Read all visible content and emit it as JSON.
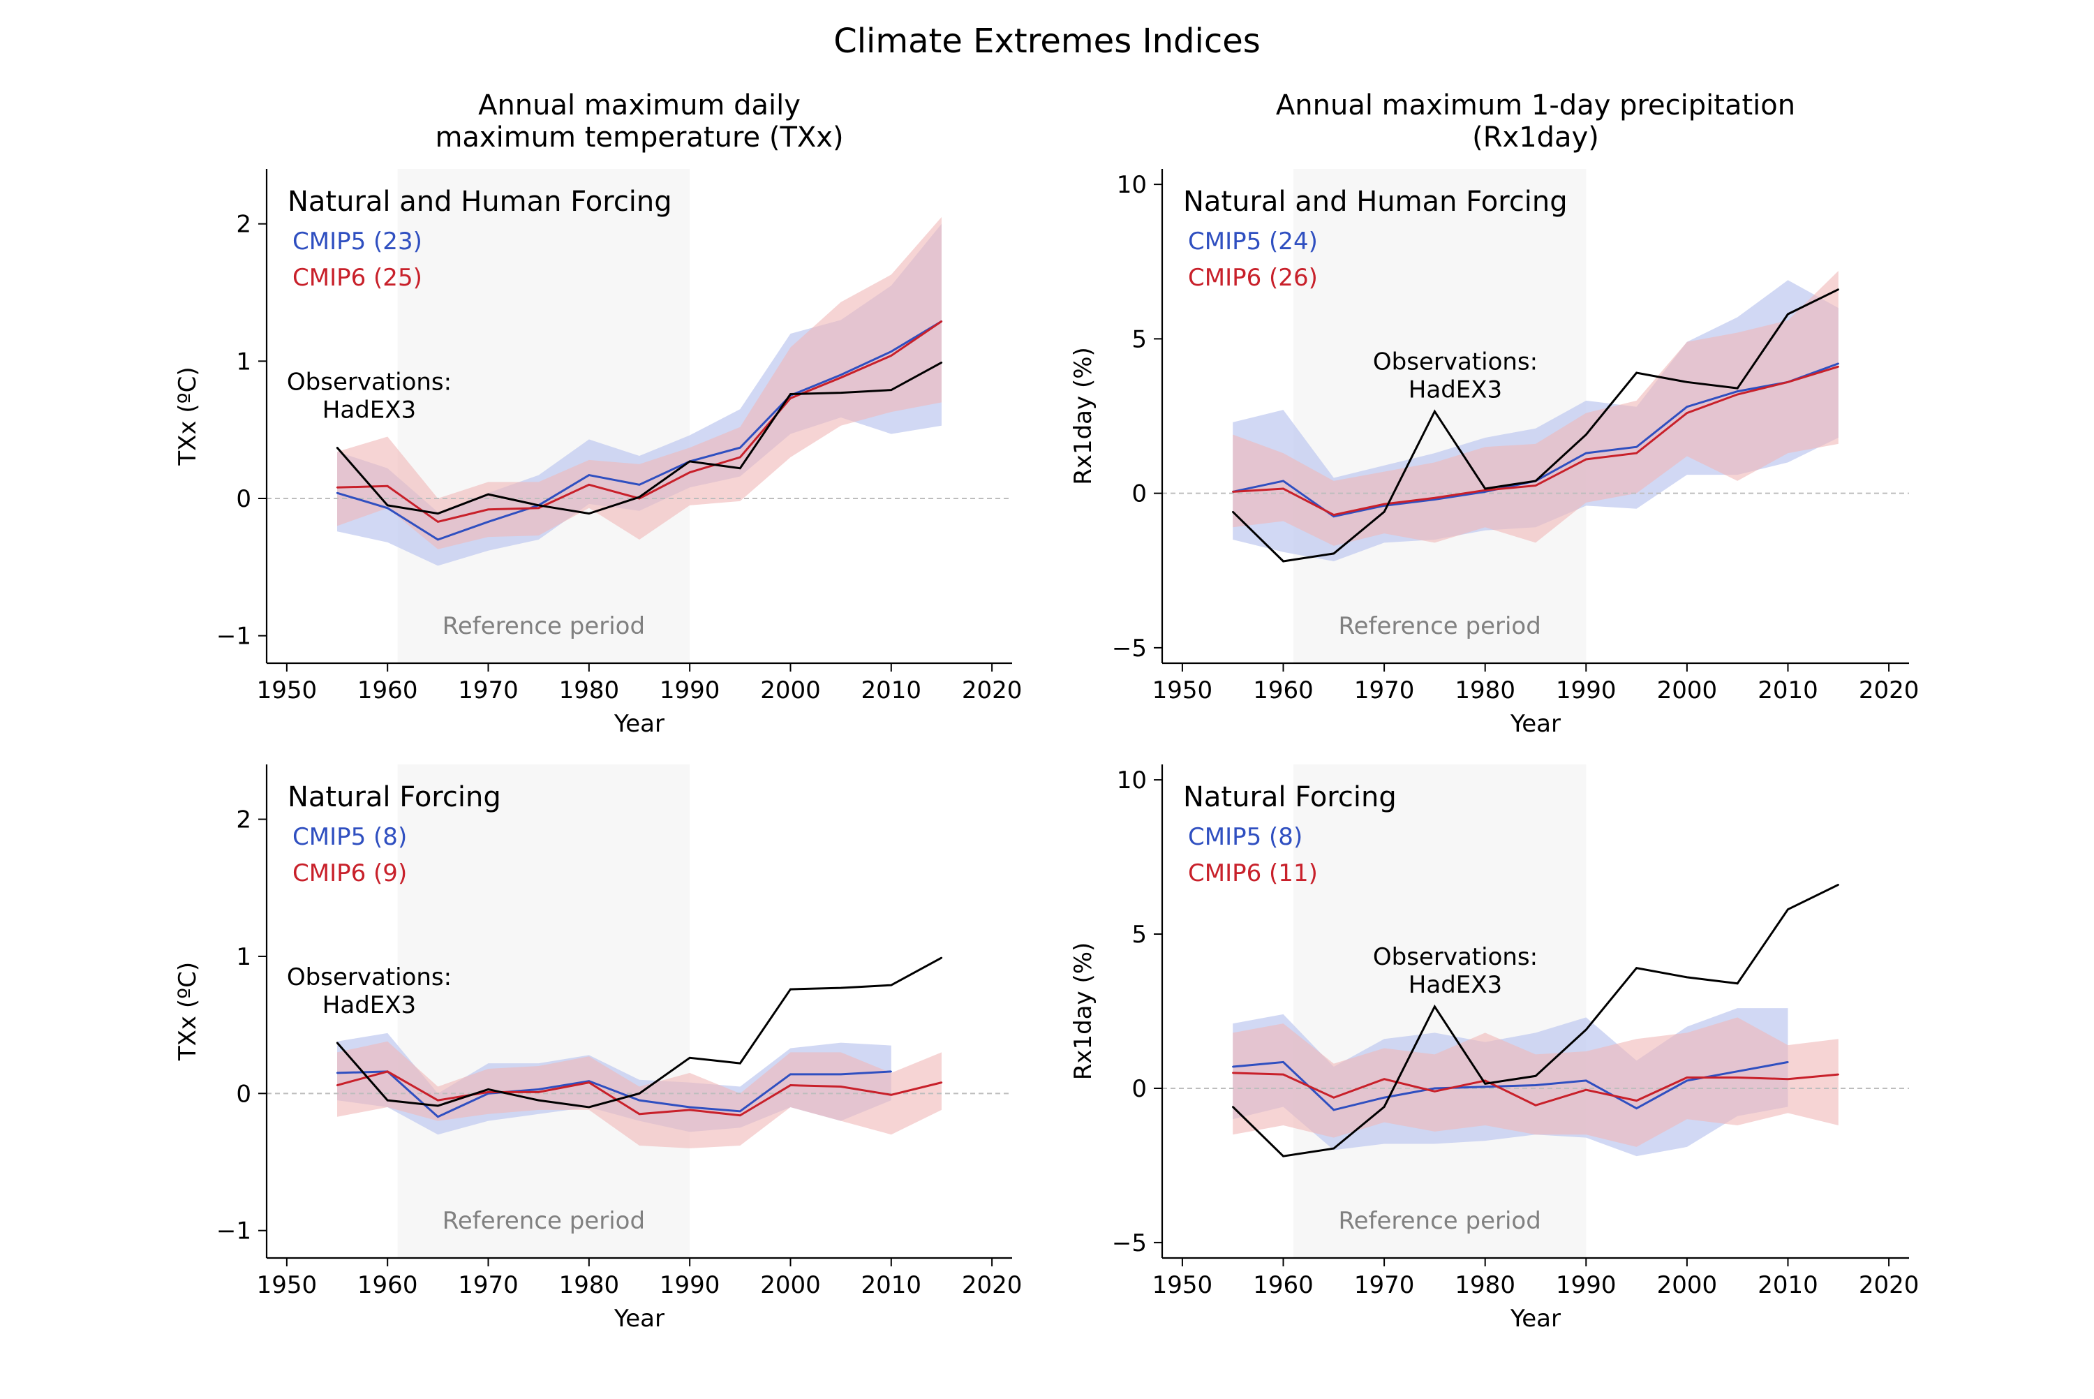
{
  "figure": {
    "suptitle": "Climate Extremes Indices"
  },
  "colors": {
    "cmip5": "#2f4fc0",
    "cmip6": "#c8202a",
    "cmip5_band": "#c2cbf0",
    "cmip6_band": "#f0b8b8",
    "observations": "#000000",
    "reference_shading": "#f7f7f7",
    "reference_text": "#808080",
    "zero_line": "#bdbdbd"
  },
  "chart_data": [
    {
      "type": "line",
      "title": "Annual maximum daily\nmaximum temperature (TXx)",
      "xlabel": "Year",
      "ylabel": "TXx (ºC)",
      "xlim": [
        1948,
        2022
      ],
      "ylim": [
        -1.2,
        2.4
      ],
      "xticks": [
        1950,
        1960,
        1970,
        1980,
        1990,
        2000,
        2010,
        2020
      ],
      "yticks": [
        -1,
        0,
        1,
        2
      ],
      "ytick_labels": [
        "−1",
        "0",
        "1",
        "2"
      ],
      "reference_period": {
        "label": "Reference period",
        "range": [
          1961,
          1990
        ]
      },
      "zero_line": true,
      "panel_label": "Natural and Human Forcing",
      "legend": [
        {
          "text": "CMIP5 (23)",
          "series": "cmip5"
        },
        {
          "text": "CMIP6 (25)",
          "series": "cmip6"
        }
      ],
      "obs_label": [
        "Observations:",
        "HadEX3"
      ],
      "series": [
        {
          "id": "cmip5",
          "name": "CMIP5 (23)",
          "x": [
            1955,
            1960,
            1965,
            1970,
            1975,
            1980,
            1985,
            1990,
            1995,
            2000,
            2005,
            2010,
            2015
          ],
          "values": [
            0.04,
            -0.07,
            -0.3,
            -0.17,
            -0.05,
            0.17,
            0.1,
            0.27,
            0.37,
            0.75,
            0.9,
            1.07,
            1.29
          ],
          "lower": [
            -0.24,
            -0.32,
            -0.49,
            -0.38,
            -0.3,
            -0.04,
            -0.09,
            0.08,
            0.16,
            0.47,
            0.59,
            0.47,
            0.53
          ],
          "upper": [
            0.34,
            0.22,
            -0.1,
            0.04,
            0.17,
            0.43,
            0.31,
            0.46,
            0.65,
            1.2,
            1.3,
            1.55,
            2.0
          ]
        },
        {
          "id": "cmip6",
          "name": "CMIP6 (25)",
          "x": [
            1955,
            1960,
            1965,
            1970,
            1975,
            1980,
            1985,
            1990,
            1995,
            2000,
            2005,
            2010,
            2015
          ],
          "values": [
            0.08,
            0.09,
            -0.17,
            -0.08,
            -0.07,
            0.1,
            0.0,
            0.19,
            0.3,
            0.73,
            0.88,
            1.04,
            1.29
          ],
          "lower": [
            -0.2,
            -0.07,
            -0.37,
            -0.28,
            -0.27,
            -0.07,
            -0.3,
            -0.05,
            -0.02,
            0.3,
            0.53,
            0.63,
            0.7
          ],
          "upper": [
            0.34,
            0.45,
            0.0,
            0.12,
            0.12,
            0.28,
            0.25,
            0.37,
            0.52,
            1.1,
            1.43,
            1.63,
            2.05
          ]
        },
        {
          "id": "obs",
          "name": "",
          "x": [
            1955,
            1960,
            1965,
            1970,
            1975,
            1980,
            1985,
            1990,
            1995,
            2000,
            2005,
            2010,
            2015
          ],
          "values": [
            0.37,
            -0.05,
            -0.11,
            0.03,
            -0.05,
            -0.11,
            0.01,
            0.27,
            0.22,
            0.76,
            0.77,
            0.79,
            0.99
          ]
        }
      ]
    },
    {
      "type": "line",
      "title": "Annual maximum 1-day precipitation\n(Rx1day)",
      "xlabel": "Year",
      "ylabel": "Rx1day (%)",
      "xlim": [
        1948,
        2022
      ],
      "ylim": [
        -5.5,
        10.5
      ],
      "xticks": [
        1950,
        1960,
        1970,
        1980,
        1990,
        2000,
        2010,
        2020
      ],
      "yticks": [
        -5,
        0,
        5,
        10
      ],
      "ytick_labels": [
        "−5",
        "0",
        "5",
        "10"
      ],
      "reference_period": {
        "label": "Reference period",
        "range": [
          1961,
          1990
        ]
      },
      "zero_line": true,
      "panel_label": "Natural and Human Forcing",
      "legend": [
        {
          "text": "CMIP5 (24)",
          "series": "cmip5"
        },
        {
          "text": "CMIP6 (26)",
          "series": "cmip6"
        }
      ],
      "obs_label": [
        "Observations:",
        "HadEX3"
      ],
      "series": [
        {
          "id": "cmip5",
          "name": "CMIP5 (24)",
          "x": [
            1955,
            1960,
            1965,
            1970,
            1975,
            1980,
            1985,
            1990,
            1995,
            2000,
            2005,
            2010,
            2015
          ],
          "values": [
            0.05,
            0.4,
            -0.75,
            -0.4,
            -0.2,
            0.05,
            0.4,
            1.3,
            1.5,
            2.8,
            3.3,
            3.6,
            4.2
          ],
          "lower": [
            -1.5,
            -1.9,
            -2.2,
            -1.6,
            -1.5,
            -1.2,
            -1.1,
            -0.4,
            -0.5,
            0.6,
            0.6,
            1.0,
            1.8
          ],
          "upper": [
            2.3,
            2.7,
            0.5,
            0.9,
            1.3,
            1.8,
            2.1,
            3.0,
            2.8,
            4.9,
            5.7,
            6.9,
            6.0
          ]
        },
        {
          "id": "cmip6",
          "name": "CMIP6 (26)",
          "x": [
            1955,
            1960,
            1965,
            1970,
            1975,
            1980,
            1985,
            1990,
            1995,
            2000,
            2005,
            2010,
            2015
          ],
          "values": [
            0.05,
            0.15,
            -0.7,
            -0.35,
            -0.15,
            0.1,
            0.25,
            1.1,
            1.3,
            2.6,
            3.2,
            3.6,
            4.1
          ],
          "lower": [
            -1.1,
            -0.9,
            -1.7,
            -1.3,
            -1.6,
            -1.1,
            -1.6,
            -0.3,
            0.0,
            1.2,
            0.4,
            1.3,
            1.6
          ],
          "upper": [
            1.9,
            1.3,
            0.4,
            0.7,
            1.0,
            1.5,
            1.6,
            2.6,
            3.0,
            4.9,
            5.2,
            5.6,
            7.2
          ]
        },
        {
          "id": "obs",
          "name": "",
          "x": [
            1955,
            1960,
            1965,
            1970,
            1975,
            1980,
            1985,
            1990,
            1995,
            2000,
            2005,
            2010,
            2015
          ],
          "values": [
            -0.6,
            -2.2,
            -1.95,
            -0.6,
            2.65,
            0.15,
            0.4,
            1.9,
            3.9,
            3.6,
            3.4,
            5.8,
            6.6
          ]
        }
      ]
    },
    {
      "type": "line",
      "title": "",
      "xlabel": "Year",
      "ylabel": "TXx (ºC)",
      "xlim": [
        1948,
        2022
      ],
      "ylim": [
        -1.2,
        2.4
      ],
      "xticks": [
        1950,
        1960,
        1970,
        1980,
        1990,
        2000,
        2010,
        2020
      ],
      "yticks": [
        -1,
        0,
        1,
        2
      ],
      "ytick_labels": [
        "−1",
        "0",
        "1",
        "2"
      ],
      "reference_period": {
        "label": "Reference period",
        "range": [
          1961,
          1990
        ]
      },
      "zero_line": true,
      "panel_label": "Natural Forcing",
      "legend": [
        {
          "text": "CMIP5 (8)",
          "series": "cmip5"
        },
        {
          "text": "CMIP6 (9)",
          "series": "cmip6"
        }
      ],
      "obs_label": [
        "Observations:",
        "HadEX3"
      ],
      "series": [
        {
          "id": "cmip5",
          "name": "CMIP5 (8)",
          "x": [
            1955,
            1960,
            1965,
            1970,
            1975,
            1980,
            1985,
            1990,
            1995,
            2000,
            2005,
            2010
          ],
          "values": [
            0.15,
            0.16,
            -0.17,
            0.0,
            0.03,
            0.09,
            -0.05,
            -0.1,
            -0.13,
            0.14,
            0.14,
            0.16
          ],
          "lower": [
            -0.05,
            -0.1,
            -0.3,
            -0.2,
            -0.15,
            -0.1,
            -0.2,
            -0.28,
            -0.25,
            -0.1,
            -0.2,
            -0.05
          ],
          "upper": [
            0.38,
            0.44,
            0.0,
            0.22,
            0.22,
            0.28,
            0.1,
            0.08,
            0.05,
            0.33,
            0.37,
            0.35
          ]
        },
        {
          "id": "cmip6",
          "name": "CMIP6 (9)",
          "x": [
            1955,
            1960,
            1965,
            1970,
            1975,
            1980,
            1985,
            1990,
            1995,
            2000,
            2005,
            2010,
            2015
          ],
          "values": [
            0.06,
            0.16,
            -0.05,
            0.01,
            0.01,
            0.08,
            -0.15,
            -0.12,
            -0.16,
            0.06,
            0.05,
            -0.01,
            0.08
          ],
          "lower": [
            -0.17,
            -0.1,
            -0.2,
            -0.15,
            -0.12,
            -0.12,
            -0.38,
            -0.4,
            -0.38,
            -0.1,
            -0.2,
            -0.3,
            -0.12
          ],
          "upper": [
            0.3,
            0.38,
            0.05,
            0.18,
            0.2,
            0.27,
            0.05,
            0.15,
            0.0,
            0.3,
            0.3,
            0.15,
            0.3
          ]
        },
        {
          "id": "obs",
          "name": "",
          "x": [
            1955,
            1960,
            1965,
            1970,
            1975,
            1980,
            1985,
            1990,
            1995,
            2000,
            2005,
            2010,
            2015
          ],
          "values": [
            0.37,
            -0.05,
            -0.09,
            0.03,
            -0.05,
            -0.1,
            0.0,
            0.26,
            0.22,
            0.76,
            0.77,
            0.79,
            0.99
          ]
        }
      ]
    },
    {
      "type": "line",
      "title": "",
      "xlabel": "Year",
      "ylabel": "Rx1day (%)",
      "xlim": [
        1948,
        2022
      ],
      "ylim": [
        -5.5,
        10.5
      ],
      "xticks": [
        1950,
        1960,
        1970,
        1980,
        1990,
        2000,
        2010,
        2020
      ],
      "yticks": [
        -5,
        0,
        5,
        10
      ],
      "ytick_labels": [
        "−5",
        "0",
        "5",
        "10"
      ],
      "reference_period": {
        "label": "Reference period",
        "range": [
          1961,
          1990
        ]
      },
      "zero_line": true,
      "panel_label": "Natural Forcing",
      "legend": [
        {
          "text": "CMIP5 (8)",
          "series": "cmip5"
        },
        {
          "text": "CMIP6 (11)",
          "series": "cmip6"
        }
      ],
      "obs_label": [
        "Observations:",
        "HadEX3"
      ],
      "series": [
        {
          "id": "cmip5",
          "name": "CMIP5 (8)",
          "x": [
            1955,
            1960,
            1965,
            1970,
            1975,
            1980,
            1985,
            1990,
            1995,
            2000,
            2005,
            2010
          ],
          "values": [
            0.7,
            0.85,
            -0.7,
            -0.3,
            0.0,
            0.05,
            0.1,
            0.25,
            -0.65,
            0.25,
            0.55,
            0.85
          ],
          "lower": [
            -1.0,
            -0.6,
            -2.0,
            -1.8,
            -1.8,
            -1.7,
            -1.5,
            -1.6,
            -2.2,
            -1.9,
            -0.9,
            -0.6
          ],
          "upper": [
            2.1,
            2.4,
            0.7,
            1.6,
            1.8,
            1.5,
            1.8,
            2.3,
            0.9,
            2.0,
            2.6,
            2.6
          ]
        },
        {
          "id": "cmip6",
          "name": "CMIP6 (11)",
          "x": [
            1955,
            1960,
            1965,
            1970,
            1975,
            1980,
            1985,
            1990,
            1995,
            2000,
            2005,
            2010,
            2015
          ],
          "values": [
            0.5,
            0.45,
            -0.3,
            0.3,
            -0.1,
            0.25,
            -0.55,
            -0.05,
            -0.4,
            0.35,
            0.35,
            0.3,
            0.45
          ],
          "lower": [
            -1.5,
            -1.2,
            -1.6,
            -1.1,
            -1.4,
            -1.2,
            -1.5,
            -1.5,
            -1.9,
            -1.0,
            -1.2,
            -0.8,
            -1.2
          ],
          "upper": [
            1.8,
            2.1,
            0.8,
            1.3,
            1.1,
            1.8,
            1.1,
            1.2,
            1.6,
            1.8,
            2.3,
            1.4,
            1.6
          ]
        },
        {
          "id": "obs",
          "name": "",
          "x": [
            1955,
            1960,
            1965,
            1970,
            1975,
            1980,
            1985,
            1990,
            1995,
            2000,
            2005,
            2010,
            2015
          ],
          "values": [
            -0.6,
            -2.2,
            -1.95,
            -0.6,
            2.65,
            0.15,
            0.4,
            1.9,
            3.9,
            3.6,
            3.4,
            5.8,
            6.6
          ]
        }
      ]
    }
  ]
}
